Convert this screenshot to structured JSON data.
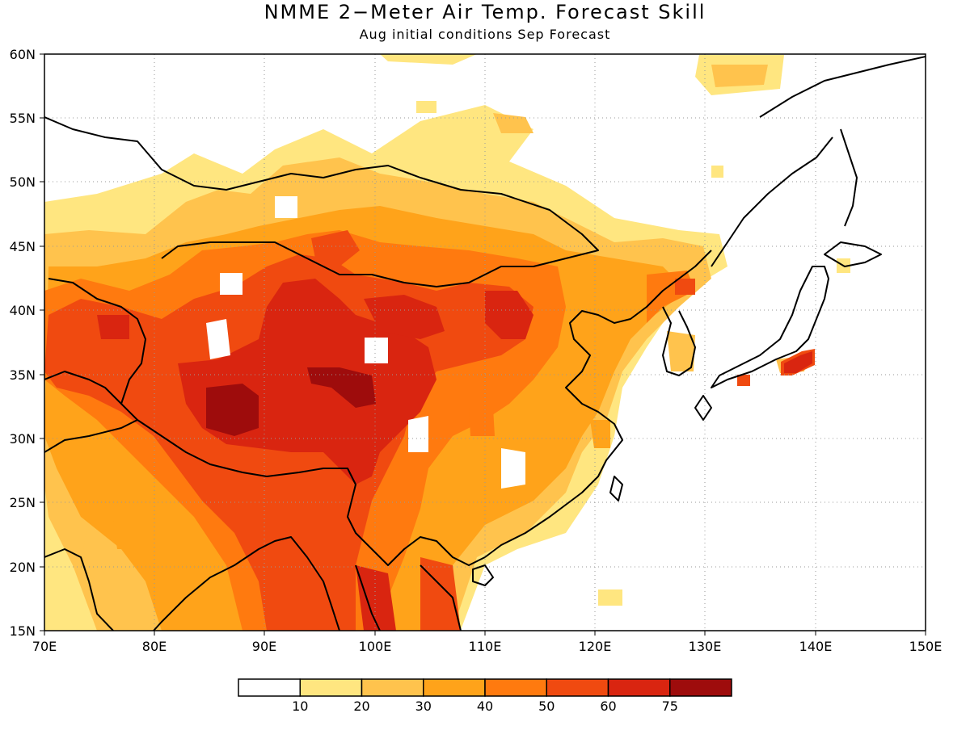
{
  "title": "NMME 2−Meter Air Temp. Forecast Skill",
  "subtitle": "Aug initial conditions  Sep Forecast",
  "map": {
    "lon_range": [
      70,
      150
    ],
    "lat_range": [
      15,
      60
    ],
    "lon_ticks": [
      "70E",
      "80E",
      "90E",
      "100E",
      "110E",
      "120E",
      "130E",
      "140E",
      "150E"
    ],
    "lat_ticks": [
      "15N",
      "20N",
      "25N",
      "30N",
      "35N",
      "40N",
      "45N",
      "50N",
      "55N",
      "60N"
    ],
    "grid": true
  },
  "colorbar": {
    "labels": [
      "10",
      "20",
      "30",
      "40",
      "50",
      "60",
      "75"
    ],
    "colors": [
      "#ffffff",
      "#ffe680",
      "#ffc34d",
      "#ffa31a",
      "#ff7a0f",
      "#f04a10",
      "#d92510",
      "#9e0c0c"
    ]
  }
}
